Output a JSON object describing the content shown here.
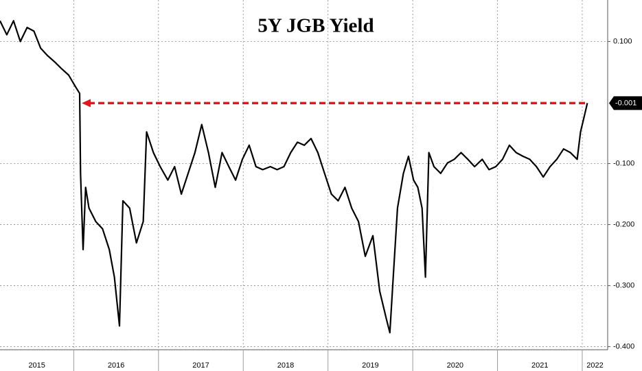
{
  "chart_data": {
    "type": "line",
    "title": "5Y JGB Yield",
    "color": "#000000",
    "x": [
      2015.13,
      2015.21,
      2015.29,
      2015.37,
      2015.45,
      2015.53,
      2015.61,
      2015.69,
      2015.78,
      2015.86,
      2015.94,
      2016.02,
      2016.07,
      2016.08,
      2016.11,
      2016.14,
      2016.18,
      2016.26,
      2016.34,
      2016.42,
      2016.48,
      2016.54,
      2016.58,
      2016.66,
      2016.74,
      2016.82,
      2016.86,
      2016.94,
      2017.02,
      2017.11,
      2017.19,
      2017.27,
      2017.35,
      2017.43,
      2017.51,
      2017.59,
      2017.67,
      2017.75,
      2017.83,
      2017.91,
      2017.99,
      2018.07,
      2018.15,
      2018.23,
      2018.32,
      2018.4,
      2018.48,
      2018.56,
      2018.64,
      2018.72,
      2018.8,
      2018.88,
      2018.96,
      2019.04,
      2019.12,
      2019.2,
      2019.28,
      2019.36,
      2019.44,
      2019.53,
      2019.61,
      2019.69,
      2019.73,
      2019.77,
      2019.82,
      2019.89,
      2019.95,
      2020.01,
      2020.06,
      2020.11,
      2020.15,
      2020.19,
      2020.25,
      2020.33,
      2020.41,
      2020.49,
      2020.57,
      2020.65,
      2020.73,
      2020.82,
      2020.9,
      2020.98,
      2021.06,
      2021.14,
      2021.22,
      2021.3,
      2021.38,
      2021.46,
      2021.54,
      2021.62,
      2021.7,
      2021.78,
      2021.86,
      2021.94,
      2021.98,
      2022.02,
      2022.06
    ],
    "values": [
      0.134,
      0.111,
      0.134,
      0.1,
      0.123,
      0.117,
      0.089,
      0.077,
      0.066,
      0.055,
      0.045,
      0.026,
      0.015,
      -0.116,
      -0.241,
      -0.139,
      -0.173,
      -0.195,
      -0.207,
      -0.241,
      -0.286,
      -0.366,
      -0.161,
      -0.173,
      -0.23,
      -0.195,
      -0.048,
      -0.082,
      -0.105,
      -0.127,
      -0.105,
      -0.15,
      -0.116,
      -0.082,
      -0.036,
      -0.082,
      -0.139,
      -0.082,
      -0.105,
      -0.127,
      -0.093,
      -0.07,
      -0.105,
      -0.11,
      -0.105,
      -0.11,
      -0.105,
      -0.082,
      -0.065,
      -0.07,
      -0.059,
      -0.082,
      -0.116,
      -0.15,
      -0.161,
      -0.139,
      -0.173,
      -0.195,
      -0.252,
      -0.218,
      -0.309,
      -0.355,
      -0.377,
      -0.286,
      -0.173,
      -0.116,
      -0.088,
      -0.127,
      -0.139,
      -0.173,
      -0.286,
      -0.082,
      -0.105,
      -0.116,
      -0.099,
      -0.093,
      -0.082,
      -0.093,
      -0.105,
      -0.093,
      -0.11,
      -0.105,
      -0.093,
      -0.07,
      -0.082,
      -0.088,
      -0.093,
      -0.105,
      -0.122,
      -0.105,
      -0.093,
      -0.076,
      -0.082,
      -0.093,
      -0.048,
      -0.025,
      -0.001
    ],
    "xlim": [
      2015.13,
      2022.3
    ],
    "xticks": [
      {
        "value": 2015,
        "label": "2015"
      },
      {
        "value": 2016,
        "label": "2016"
      },
      {
        "value": 2017,
        "label": "2017"
      },
      {
        "value": 2018,
        "label": "2018"
      },
      {
        "value": 2019,
        "label": "2019"
      },
      {
        "value": 2020,
        "label": "2020"
      },
      {
        "value": 2021,
        "label": "2021"
      },
      {
        "value": 2022,
        "label": "2022"
      }
    ],
    "ylim": [
      -0.405,
      0.168
    ],
    "yticks": [
      {
        "value": 0.1,
        "label": "0.100"
      },
      {
        "value": -0.1,
        "label": "-0.100"
      },
      {
        "value": -0.2,
        "label": "-0.200"
      },
      {
        "value": -0.3,
        "label": "-0.300"
      },
      {
        "value": -0.4,
        "label": "-0.400"
      }
    ],
    "grid": true,
    "annotation": {
      "value": -0.001,
      "label": "-0.001",
      "color": "#e8141c"
    }
  }
}
